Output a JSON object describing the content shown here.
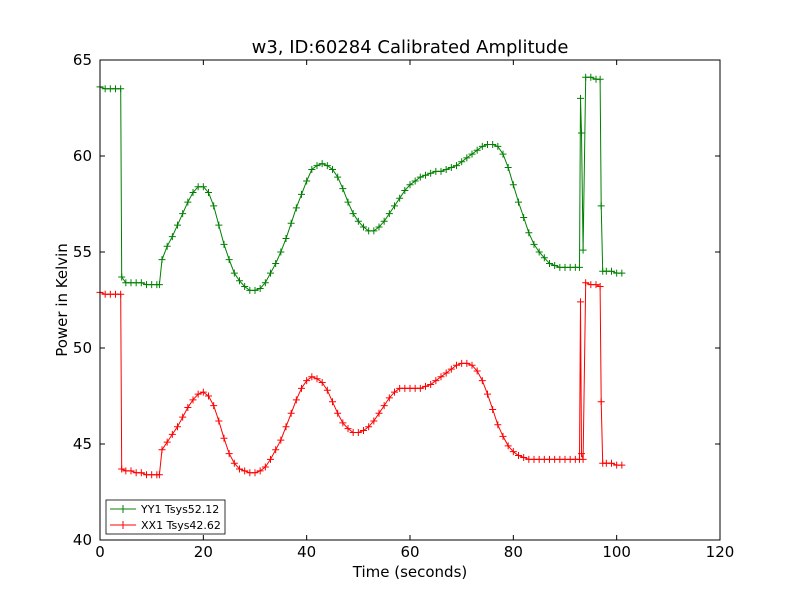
{
  "chart_data": {
    "type": "line",
    "title": "w3, ID:60284 Calibrated Amplitude",
    "xlabel": "Time (seconds)",
    "ylabel": "Power in Kelvin",
    "xlim": [
      0,
      120
    ],
    "ylim": [
      40,
      65
    ],
    "xticks": [
      0,
      20,
      40,
      60,
      80,
      100,
      120
    ],
    "yticks": [
      40,
      45,
      50,
      55,
      60,
      65
    ],
    "grid": false,
    "legend_position": "lower-left",
    "marker": "plus",
    "series": [
      {
        "name": "YY1 Tsys52.12",
        "color": "#008000",
        "x": [
          0,
          1,
          2,
          3,
          4,
          4.2,
          5,
          6,
          7,
          8,
          9,
          10,
          11,
          11.5,
          12,
          13,
          14,
          15,
          16,
          17,
          18,
          19,
          20,
          21,
          22,
          23,
          24,
          25,
          26,
          27,
          28,
          29,
          30,
          31,
          32,
          33,
          34,
          35,
          36,
          37,
          38,
          39,
          40,
          41,
          42,
          43,
          44,
          45,
          46,
          47,
          48,
          49,
          50,
          51,
          52,
          53,
          54,
          55,
          56,
          57,
          58,
          59,
          60,
          61,
          62,
          63,
          64,
          65,
          66,
          67,
          68,
          69,
          70,
          71,
          72,
          73,
          74,
          75,
          76,
          77,
          78,
          79,
          80,
          81,
          82,
          83,
          84,
          85,
          86,
          87,
          88,
          89,
          90,
          91,
          92,
          92.8,
          93,
          93.2,
          93.5,
          94,
          95,
          96,
          96.8,
          97,
          97.3,
          98,
          99,
          100,
          101
        ],
        "y": [
          63.6,
          63.5,
          63.5,
          63.5,
          63.5,
          53.7,
          53.4,
          53.4,
          53.4,
          53.4,
          53.3,
          53.3,
          53.3,
          53.3,
          54.6,
          55.3,
          55.8,
          56.4,
          57.0,
          57.6,
          58.1,
          58.4,
          58.4,
          58.1,
          57.4,
          56.4,
          55.4,
          54.6,
          53.9,
          53.5,
          53.2,
          53.0,
          53.0,
          53.1,
          53.4,
          53.9,
          54.4,
          55.0,
          55.7,
          56.5,
          57.3,
          58.0,
          58.7,
          59.3,
          59.5,
          59.6,
          59.5,
          59.3,
          58.9,
          58.3,
          57.6,
          57.0,
          56.6,
          56.3,
          56.1,
          56.1,
          56.3,
          56.6,
          57.0,
          57.4,
          57.8,
          58.2,
          58.5,
          58.7,
          58.9,
          59.0,
          59.1,
          59.2,
          59.2,
          59.3,
          59.4,
          59.5,
          59.7,
          59.9,
          60.1,
          60.3,
          60.5,
          60.6,
          60.6,
          60.5,
          60.1,
          59.4,
          58.5,
          57.6,
          56.8,
          56.0,
          55.4,
          55.0,
          54.7,
          54.4,
          54.3,
          54.2,
          54.2,
          54.2,
          54.2,
          54.2,
          63.0,
          61.2,
          55.1,
          64.1,
          64.1,
          64.0,
          64.0,
          57.4,
          54.0,
          54.0,
          54.0,
          53.9,
          53.9
        ]
      },
      {
        "name": "XX1 Tsys42.62",
        "color": "#ff0000",
        "x": [
          0,
          1,
          2,
          3,
          4,
          4.2,
          5,
          6,
          7,
          8,
          9,
          10,
          11,
          11.5,
          12,
          13,
          14,
          15,
          16,
          17,
          18,
          19,
          20,
          21,
          22,
          23,
          24,
          25,
          26,
          27,
          28,
          29,
          30,
          31,
          32,
          33,
          34,
          35,
          36,
          37,
          38,
          39,
          40,
          41,
          42,
          43,
          44,
          45,
          46,
          47,
          48,
          49,
          50,
          51,
          52,
          53,
          54,
          55,
          56,
          57,
          58,
          59,
          60,
          61,
          62,
          63,
          64,
          65,
          66,
          67,
          68,
          69,
          70,
          71,
          72,
          73,
          74,
          75,
          76,
          77,
          78,
          79,
          80,
          81,
          82,
          83,
          84,
          85,
          86,
          87,
          88,
          89,
          90,
          91,
          92,
          92.8,
          93,
          93.2,
          93.5,
          94,
          95,
          96,
          96.8,
          97,
          97.3,
          98,
          99,
          100,
          101
        ],
        "y": [
          52.9,
          52.8,
          52.8,
          52.8,
          52.8,
          43.7,
          43.6,
          43.6,
          43.5,
          43.5,
          43.4,
          43.4,
          43.4,
          43.4,
          44.7,
          45.1,
          45.5,
          45.9,
          46.4,
          46.9,
          47.3,
          47.6,
          47.7,
          47.5,
          47.0,
          46.2,
          45.3,
          44.5,
          44.0,
          43.7,
          43.6,
          43.5,
          43.5,
          43.6,
          43.8,
          44.2,
          44.7,
          45.2,
          45.9,
          46.6,
          47.3,
          47.9,
          48.3,
          48.5,
          48.4,
          48.2,
          47.8,
          47.2,
          46.6,
          46.1,
          45.8,
          45.6,
          45.6,
          45.7,
          45.9,
          46.2,
          46.6,
          47.0,
          47.4,
          47.7,
          47.9,
          47.9,
          47.9,
          47.9,
          47.9,
          48.0,
          48.1,
          48.3,
          48.5,
          48.7,
          48.9,
          49.1,
          49.2,
          49.2,
          49.1,
          48.8,
          48.3,
          47.6,
          46.8,
          46.0,
          45.4,
          44.9,
          44.6,
          44.4,
          44.3,
          44.2,
          44.2,
          44.2,
          44.2,
          44.2,
          44.2,
          44.2,
          44.2,
          44.2,
          44.2,
          44.2,
          52.4,
          44.5,
          44.2,
          53.4,
          53.3,
          53.3,
          53.2,
          47.2,
          44.0,
          44.0,
          44.0,
          43.9,
          43.9
        ]
      }
    ]
  }
}
